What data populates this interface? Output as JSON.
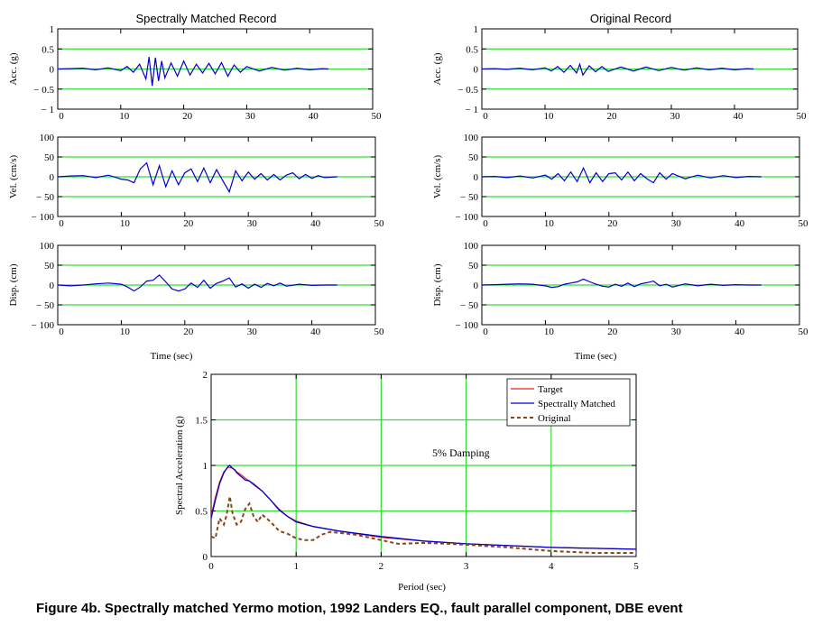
{
  "caption": "Figure 4b. Spectrally matched Yermo motion, 1992 Landers EQ., fault parallel component, DBE event",
  "colors": {
    "grid": "#33dd33",
    "matched": "#0000cc",
    "target": "#ee2222",
    "original": "#8b4513",
    "axis": "#000000"
  },
  "chart_data": [
    {
      "id": "left-acc",
      "type": "line",
      "title": "Spectrally Matched Record",
      "ylabel": "Acc. (g)",
      "xlabel": "",
      "xlim": [
        0,
        50
      ],
      "ylim": [
        -1,
        1
      ],
      "xticks": [
        0,
        10,
        20,
        30,
        40,
        50
      ],
      "xtick_labels": [
        "0",
        "10",
        "20",
        "30",
        "40",
        "50"
      ],
      "yticks": [
        -1,
        -0.5,
        0,
        0.5,
        1
      ],
      "ytick_labels": [
        "− 1",
        "− 0.5",
        "0",
        "0.5",
        "1"
      ],
      "grid_y": [
        -0.5,
        0,
        0.5
      ],
      "series": [
        {
          "name": "Spectrally Matched",
          "x": [
            0,
            2,
            4,
            6,
            8,
            10,
            11,
            12,
            13,
            14,
            14.5,
            15,
            15.5,
            16,
            16.5,
            17,
            18,
            19,
            20,
            21,
            22,
            23,
            24,
            25,
            26,
            27,
            28,
            29,
            30,
            32,
            34,
            36,
            38,
            40,
            42,
            43
          ],
          "y": [
            0,
            0.01,
            0.02,
            -0.02,
            0.03,
            -0.04,
            0.06,
            -0.08,
            0.12,
            -0.25,
            0.3,
            -0.42,
            0.28,
            -0.3,
            0.2,
            -0.22,
            0.15,
            -0.18,
            0.2,
            -0.15,
            0.12,
            -0.1,
            0.14,
            -0.12,
            0.16,
            -0.18,
            0.1,
            -0.08,
            0.06,
            -0.05,
            0.04,
            -0.03,
            0.02,
            -0.02,
            0.01,
            0
          ]
        }
      ]
    },
    {
      "id": "left-vel",
      "type": "line",
      "title": "",
      "ylabel": "Vel. (cm/s)",
      "xlabel": "",
      "xlim": [
        0,
        50
      ],
      "ylim": [
        -100,
        100
      ],
      "xticks": [
        0,
        10,
        20,
        30,
        40,
        50
      ],
      "xtick_labels": [
        "0",
        "10",
        "20",
        "30",
        "40",
        "50"
      ],
      "yticks": [
        -100,
        -50,
        0,
        50,
        100
      ],
      "ytick_labels": [
        "− 100",
        "− 50",
        "0",
        "50",
        "100"
      ],
      "grid_y": [
        -50,
        0,
        50
      ],
      "series": [
        {
          "name": "Spectrally Matched",
          "x": [
            0,
            2,
            4,
            6,
            8,
            10,
            11,
            12,
            13,
            14,
            15,
            16,
            17,
            18,
            19,
            20,
            21,
            22,
            23,
            24,
            25,
            26,
            27,
            28,
            29,
            30,
            31,
            32,
            33,
            34,
            35,
            36,
            37,
            38,
            39,
            40,
            41,
            42,
            44
          ],
          "y": [
            0,
            2,
            3,
            -2,
            4,
            -6,
            -8,
            -15,
            20,
            35,
            -20,
            28,
            -25,
            15,
            -20,
            10,
            20,
            -12,
            22,
            -15,
            18,
            -10,
            -38,
            15,
            -10,
            12,
            -6,
            8,
            -8,
            6,
            -8,
            4,
            10,
            -5,
            6,
            -4,
            3,
            -2,
            0
          ]
        }
      ]
    },
    {
      "id": "left-disp",
      "type": "line",
      "title": "",
      "ylabel": "Disp. (cm)",
      "xlabel": "Time (sec)",
      "xlim": [
        0,
        50
      ],
      "ylim": [
        -100,
        100
      ],
      "xticks": [
        0,
        10,
        20,
        30,
        40,
        50
      ],
      "xtick_labels": [
        "0",
        "10",
        "20",
        "30",
        "40",
        "50"
      ],
      "yticks": [
        -100,
        -50,
        0,
        50,
        100
      ],
      "ytick_labels": [
        "− 100",
        "− 50",
        "0",
        "50",
        "100"
      ],
      "grid_y": [
        -50,
        0,
        50
      ],
      "series": [
        {
          "name": "Spectrally Matched",
          "x": [
            0,
            2,
            4,
            6,
            8,
            10,
            11,
            12,
            13,
            14,
            15,
            16,
            17,
            18,
            19,
            20,
            21,
            22,
            23,
            24,
            25,
            26,
            27,
            28,
            29,
            30,
            31,
            32,
            33,
            34,
            35,
            36,
            38,
            40,
            42,
            44
          ],
          "y": [
            0,
            -2,
            0,
            3,
            5,
            2,
            -5,
            -15,
            -5,
            10,
            12,
            25,
            8,
            -10,
            -15,
            -10,
            5,
            -6,
            12,
            -8,
            4,
            10,
            18,
            -5,
            3,
            -8,
            2,
            -6,
            4,
            -2,
            5,
            -3,
            2,
            -1,
            0,
            0
          ]
        }
      ]
    },
    {
      "id": "right-acc",
      "type": "line",
      "title": "Original Record",
      "ylabel": "Acc. (g)",
      "xlabel": "",
      "xlim": [
        0,
        50
      ],
      "ylim": [
        -1,
        1
      ],
      "xticks": [
        0,
        10,
        20,
        30,
        40,
        50
      ],
      "xtick_labels": [
        "0",
        "10",
        "20",
        "30",
        "40",
        "50"
      ],
      "yticks": [
        -1,
        -0.5,
        0,
        0.5,
        1
      ],
      "ytick_labels": [
        "− 1",
        "− 0.5",
        "0",
        "0.5",
        "1"
      ],
      "grid_y": [
        -0.5,
        0,
        0.5
      ],
      "series": [
        {
          "name": "Original",
          "x": [
            0,
            2,
            4,
            6,
            8,
            10,
            11,
            12,
            13,
            14,
            15,
            15.5,
            16,
            17,
            18,
            19,
            20,
            22,
            24,
            26,
            28,
            30,
            32,
            34,
            36,
            38,
            40,
            42,
            43
          ],
          "y": [
            0,
            0.01,
            -0.01,
            0.02,
            -0.02,
            0.03,
            -0.05,
            0.06,
            -0.08,
            0.09,
            -0.1,
            0.12,
            -0.15,
            0.08,
            -0.07,
            0.06,
            -0.06,
            0.05,
            -0.05,
            0.05,
            -0.04,
            0.04,
            -0.03,
            0.03,
            -0.02,
            0.02,
            -0.02,
            0.01,
            0
          ]
        }
      ]
    },
    {
      "id": "right-vel",
      "type": "line",
      "title": "",
      "ylabel": "Vel. (cm/s)",
      "xlabel": "",
      "xlim": [
        0,
        50
      ],
      "ylim": [
        -100,
        100
      ],
      "xticks": [
        0,
        10,
        20,
        30,
        40,
        50
      ],
      "xtick_labels": [
        "0",
        "10",
        "20",
        "30",
        "40",
        "50"
      ],
      "yticks": [
        -100,
        -50,
        0,
        50,
        100
      ],
      "ytick_labels": [
        "− 100",
        "− 50",
        "0",
        "50",
        "100"
      ],
      "grid_y": [
        -50,
        0,
        50
      ],
      "series": [
        {
          "name": "Original",
          "x": [
            0,
            2,
            4,
            6,
            8,
            10,
            11,
            12,
            13,
            14,
            15,
            16,
            17,
            18,
            19,
            20,
            21,
            22,
            23,
            24,
            25,
            26,
            27,
            28,
            29,
            30,
            32,
            34,
            36,
            38,
            40,
            42,
            44
          ],
          "y": [
            0,
            1,
            -2,
            2,
            -3,
            4,
            -6,
            8,
            -10,
            12,
            -12,
            22,
            -15,
            10,
            -12,
            8,
            10,
            -8,
            12,
            -10,
            8,
            -5,
            -15,
            10,
            -6,
            8,
            -5,
            4,
            -3,
            3,
            -2,
            1,
            0
          ]
        }
      ]
    },
    {
      "id": "right-disp",
      "type": "line",
      "title": "",
      "ylabel": "Disp. (cm)",
      "xlabel": "Time (sec)",
      "xlim": [
        0,
        50
      ],
      "ylim": [
        -100,
        100
      ],
      "xticks": [
        0,
        10,
        20,
        30,
        40,
        50
      ],
      "xtick_labels": [
        "0",
        "10",
        "20",
        "30",
        "40",
        "50"
      ],
      "yticks": [
        -100,
        -50,
        0,
        50,
        100
      ],
      "ytick_labels": [
        "− 100",
        "− 50",
        "0",
        "50",
        "100"
      ],
      "grid_y": [
        -50,
        0,
        50
      ],
      "series": [
        {
          "name": "Original",
          "x": [
            0,
            2,
            4,
            6,
            8,
            10,
            11,
            12,
            13,
            14,
            15,
            16,
            17,
            18,
            19,
            20,
            21,
            22,
            23,
            24,
            25,
            26,
            27,
            28,
            29,
            30,
            32,
            34,
            36,
            38,
            40,
            42,
            44
          ],
          "y": [
            0,
            1,
            2,
            3,
            2,
            -2,
            -6,
            -4,
            2,
            5,
            8,
            15,
            8,
            2,
            -3,
            -5,
            2,
            -3,
            5,
            -4,
            3,
            6,
            10,
            -2,
            2,
            -5,
            3,
            -2,
            2,
            -1,
            1,
            0,
            0
          ]
        }
      ]
    },
    {
      "id": "spectrum",
      "type": "line",
      "title": "",
      "ylabel": "Spectral Acceleration (g)",
      "xlabel": "Period (sec)",
      "xlim": [
        0,
        5
      ],
      "ylim": [
        0,
        2
      ],
      "xticks": [
        0,
        1,
        2,
        3,
        4,
        5
      ],
      "xtick_labels": [
        "0",
        "1",
        "2",
        "3",
        "4",
        "5"
      ],
      "yticks": [
        0,
        0.5,
        1,
        1.5,
        2
      ],
      "ytick_labels": [
        "0",
        "0.5",
        "1",
        "1.5",
        "2"
      ],
      "grid_x": [
        1,
        2,
        3,
        4
      ],
      "grid_y": [
        0.5,
        1,
        1.5
      ],
      "annotation": "5% Damping",
      "legend_position": "top-right",
      "series": [
        {
          "name": "Target",
          "style": "solid-target",
          "x": [
            0,
            0.05,
            0.1,
            0.15,
            0.2,
            0.25,
            0.3,
            0.35,
            0.4,
            0.5,
            0.6,
            0.7,
            0.8,
            0.9,
            1.0,
            1.2,
            1.5,
            2.0,
            2.5,
            3.0,
            3.5,
            4.0,
            4.5,
            5.0
          ],
          "y": [
            0.45,
            0.65,
            0.82,
            0.93,
            0.98,
            0.97,
            0.93,
            0.9,
            0.86,
            0.8,
            0.72,
            0.62,
            0.52,
            0.44,
            0.39,
            0.33,
            0.28,
            0.21,
            0.17,
            0.14,
            0.12,
            0.1,
            0.09,
            0.08
          ]
        },
        {
          "name": "Spectrally Matched",
          "style": "solid-matched",
          "x": [
            0,
            0.05,
            0.1,
            0.15,
            0.2,
            0.22,
            0.25,
            0.28,
            0.3,
            0.35,
            0.4,
            0.45,
            0.5,
            0.6,
            0.7,
            0.8,
            0.9,
            1.0,
            1.2,
            1.5,
            2.0,
            2.5,
            3.0,
            3.5,
            4.0,
            4.5,
            5.0
          ],
          "y": [
            0.42,
            0.62,
            0.8,
            0.92,
            0.99,
            1.0,
            0.97,
            0.95,
            0.92,
            0.88,
            0.84,
            0.83,
            0.79,
            0.72,
            0.62,
            0.51,
            0.44,
            0.38,
            0.33,
            0.28,
            0.22,
            0.17,
            0.14,
            0.12,
            0.1,
            0.09,
            0.08
          ]
        },
        {
          "name": "Original",
          "style": "dashed-original",
          "x": [
            0,
            0.05,
            0.1,
            0.15,
            0.18,
            0.2,
            0.22,
            0.25,
            0.28,
            0.3,
            0.35,
            0.4,
            0.45,
            0.5,
            0.55,
            0.6,
            0.7,
            0.8,
            0.9,
            1.0,
            1.1,
            1.2,
            1.3,
            1.4,
            1.5,
            1.7,
            2.0,
            2.2,
            2.5,
            2.8,
            3.0,
            3.5,
            4.0,
            4.5,
            5.0
          ],
          "y": [
            0.22,
            0.2,
            0.42,
            0.35,
            0.45,
            0.55,
            0.66,
            0.48,
            0.4,
            0.35,
            0.38,
            0.52,
            0.58,
            0.44,
            0.38,
            0.46,
            0.38,
            0.28,
            0.25,
            0.2,
            0.18,
            0.18,
            0.24,
            0.27,
            0.26,
            0.24,
            0.18,
            0.14,
            0.15,
            0.14,
            0.13,
            0.1,
            0.06,
            0.04,
            0.04
          ]
        }
      ]
    }
  ]
}
